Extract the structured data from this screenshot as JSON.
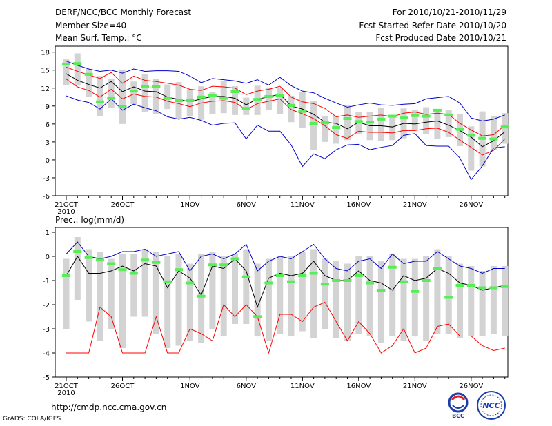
{
  "header": {
    "title": "DERF/NCC/BCC Monthly Forecast",
    "member_size": "Member Size=40",
    "variable": "Mean Surf. Temp.: °C",
    "period": "For 2010/10/21-2010/11/29",
    "refer_date": "Fcst Started Refer Date 2010/10/20",
    "produced_date": "Fcst Produced Date 2010/10/21"
  },
  "footer": {
    "url": "http://cmdp.ncc.cma.gov.cn",
    "credit": "GrADS: COLA/IGES",
    "logo_left_text": "BCC",
    "logo_right_text": "NCC"
  },
  "colors": {
    "mean": "#000000",
    "spread": "#ff0000",
    "range": "#0000cc",
    "box": "#d3d3d3",
    "obs": "#55ee55"
  },
  "chart_data": [
    {
      "type": "line",
      "title": "Mean Surf. Temp.: °C",
      "ylim": [
        -6,
        19
      ],
      "yticks": [
        "18",
        "15",
        "12",
        "9",
        "6",
        "3",
        "0",
        "-3",
        "-6"
      ],
      "ytick_values": [
        18,
        15,
        12,
        9,
        6,
        3,
        0,
        -3,
        -6
      ],
      "xlabels": [
        "21OCT",
        "26OCT",
        "1NOV",
        "6NOV",
        "11NOV",
        "16NOV",
        "21NOV",
        "26NOV"
      ],
      "xlabel_days": [
        0,
        5,
        11,
        16,
        21,
        26,
        31,
        36
      ],
      "x_year": "2010",
      "series": [
        {
          "name": "ensemble max",
          "values": [
            16.5,
            15.8,
            15.2,
            14.8,
            15.0,
            14.5,
            15.2,
            14.8,
            14.9,
            14.9,
            14.8,
            14.0,
            12.9,
            13.6,
            13.4,
            13.2,
            12.8,
            13.4,
            12.5,
            13.8,
            12.4,
            11.5,
            11.2,
            10.3,
            9.5,
            8.8,
            9.2,
            9.5,
            9.2,
            9.1,
            9.3,
            9.4,
            10.2,
            10.4,
            10.6,
            9.5,
            7.0,
            6.5,
            6.8,
            7.5
          ]
        },
        {
          "name": "upper spread",
          "values": [
            15.5,
            14.8,
            14.2,
            13.6,
            14.6,
            12.8,
            14.0,
            13.3,
            13.1,
            12.8,
            12.5,
            11.8,
            11.6,
            12.3,
            12.2,
            12.0,
            10.9,
            11.5,
            11.8,
            12.3,
            10.5,
            9.7,
            9.4,
            8.6,
            7.2,
            7.5,
            7.1,
            7.3,
            7.5,
            7.2,
            7.8,
            8.0,
            7.6,
            7.8,
            7.6,
            6.1,
            5.0,
            4.0,
            4.2,
            5.8
          ]
        },
        {
          "name": "ensemble mean",
          "values": [
            14.4,
            13.3,
            12.6,
            12.0,
            13.1,
            11.4,
            12.2,
            11.5,
            11.4,
            10.5,
            10.1,
            9.7,
            10.2,
            10.6,
            10.6,
            10.3,
            9.2,
            10.2,
            10.5,
            11.0,
            9.0,
            8.5,
            7.6,
            6.3,
            6.1,
            5.2,
            6.3,
            5.7,
            5.7,
            5.5,
            6.1,
            6.0,
            6.3,
            6.5,
            5.8,
            4.9,
            3.8,
            2.2,
            3.2,
            4.7
          ]
        },
        {
          "name": "lower spread",
          "values": [
            13.5,
            12.2,
            11.6,
            10.5,
            11.8,
            10.2,
            11.0,
            10.6,
            10.5,
            9.8,
            9.4,
            8.9,
            9.5,
            9.8,
            9.9,
            9.6,
            8.4,
            9.4,
            9.8,
            10.2,
            8.4,
            7.7,
            6.9,
            5.7,
            4.2,
            3.6,
            4.8,
            4.6,
            4.6,
            4.5,
            4.9,
            4.9,
            5.2,
            5.3,
            4.6,
            3.3,
            2.1,
            0.8,
            1.6,
            3.5
          ]
        },
        {
          "name": "ensemble min",
          "values": [
            10.7,
            10.0,
            9.6,
            8.5,
            10.2,
            8.3,
            9.3,
            8.7,
            8.2,
            7.2,
            6.8,
            7.1,
            6.6,
            5.8,
            6.1,
            6.2,
            3.5,
            5.8,
            4.8,
            4.8,
            2.5,
            -1.1,
            1.0,
            0.2,
            1.7,
            2.5,
            2.6,
            1.7,
            2.1,
            2.4,
            4.1,
            4.4,
            2.4,
            2.3,
            2.3,
            0.3,
            -3.3,
            -1.0,
            2.0,
            2.2
          ]
        },
        {
          "name": "observed",
          "values": [
            16.0,
            16.1,
            14.3,
            9.7,
            10.3,
            8.9,
            11.5,
            12.3,
            12.2,
            10.3,
            9.9,
            9.9,
            10.5,
            10.8,
            10.3,
            11.4,
            8.6,
            10.1,
            10.6,
            10.8,
            9.1,
            8.1,
            6.1,
            6.2,
            5.4,
            6.9,
            6.4,
            6.3,
            6.8,
            7.3,
            7.0,
            7.4,
            7.3,
            8.3,
            7.5,
            5.1,
            4.1,
            3.6,
            3.5,
            5.5
          ]
        }
      ],
      "boxes": {
        "upper": [
          16.8,
          17.8,
          15.2,
          14.0,
          13.6,
          15.1,
          13.1,
          14.3,
          13.5,
          12.6,
          13.0,
          11.8,
          12.3,
          11.4,
          13.2,
          12.3,
          10.4,
          12.4,
          12.0,
          12.0,
          10.7,
          11.3,
          9.9,
          7.3,
          7.4,
          9.2,
          8.0,
          8.0,
          8.7,
          7.5,
          8.6,
          8.4,
          8.8,
          8.5,
          8.3,
          7.6,
          5.6,
          8.1,
          7.3,
          7.8
        ],
        "lower": [
          12.5,
          12.4,
          10.5,
          7.3,
          8.7,
          6.0,
          9.3,
          8.0,
          7.6,
          8.5,
          6.9,
          7.3,
          6.7,
          7.7,
          7.8,
          7.5,
          7.5,
          7.5,
          8.4,
          7.6,
          6.3,
          5.4,
          1.6,
          3.0,
          2.7,
          3.3,
          4.3,
          3.3,
          3.2,
          3.3,
          3.6,
          5.0,
          4.3,
          3.5,
          3.8,
          2.3,
          -1.8,
          -1.1,
          1.7,
          2.7
        ]
      }
    },
    {
      "type": "line",
      "title": "Prec.: log(mm/d)",
      "ylim": [
        -5,
        1.2
      ],
      "yticks": [
        "1",
        "0",
        "-1",
        "-2",
        "-3",
        "-4",
        "-5"
      ],
      "ytick_values": [
        1,
        0,
        -1,
        -2,
        -3,
        -4,
        -5
      ],
      "xlabels": [
        "21OCT",
        "26OCT",
        "1NOV",
        "6NOV",
        "11NOV",
        "16NOV",
        "21NOV",
        "26NOV"
      ],
      "xlabel_days": [
        0,
        5,
        11,
        16,
        21,
        26,
        31,
        36
      ],
      "x_year": "2010",
      "series": [
        {
          "name": "ensemble max",
          "values": [
            0.1,
            0.6,
            0.0,
            -0.1,
            0.0,
            0.2,
            0.2,
            0.3,
            0.0,
            0.1,
            0.2,
            -0.6,
            0.0,
            0.1,
            -0.1,
            0.1,
            0.5,
            -0.6,
            -0.2,
            0.0,
            -0.1,
            0.2,
            0.5,
            -0.1,
            -0.5,
            -0.6,
            -0.2,
            -0.1,
            -0.5,
            0.1,
            -0.3,
            -0.2,
            -0.2,
            0.2,
            -0.1,
            -0.4,
            -0.5,
            -0.7,
            -0.5,
            -0.5
          ]
        },
        {
          "name": "ensemble mean",
          "values": [
            -0.8,
            0.0,
            -0.7,
            -0.7,
            -0.6,
            -0.4,
            -0.6,
            -0.3,
            -0.4,
            -1.3,
            -0.6,
            -0.9,
            -1.6,
            -0.4,
            -0.5,
            -0.1,
            -0.6,
            -2.1,
            -0.9,
            -0.7,
            -0.8,
            -0.7,
            -0.2,
            -0.8,
            -1.0,
            -1.0,
            -0.6,
            -1.0,
            -1.1,
            -1.4,
            -0.8,
            -1.0,
            -0.9,
            -0.5,
            -0.7,
            -1.1,
            -1.2,
            -1.4,
            -1.3,
            -1.2
          ]
        },
        {
          "name": "ensemble min",
          "values": [
            -4.0,
            -4.0,
            -4.0,
            -2.1,
            -2.5,
            -4.0,
            -4.0,
            -4.0,
            -2.5,
            -4.0,
            -4.0,
            -3.0,
            -3.2,
            -3.5,
            -2.0,
            -2.5,
            -2.0,
            -2.5,
            -4.0,
            -2.4,
            -2.4,
            -2.7,
            -2.1,
            -1.9,
            -2.7,
            -3.5,
            -2.7,
            -3.2,
            -4.0,
            -3.7,
            -3.0,
            -4.0,
            -3.8,
            -2.9,
            -2.8,
            -3.3,
            -3.3,
            -3.7,
            -3.9,
            -3.8
          ]
        },
        {
          "name": "observed",
          "values": [
            -0.8,
            0.2,
            -0.05,
            -0.15,
            -0.3,
            -0.55,
            -0.7,
            -0.15,
            -0.25,
            -1.05,
            -0.55,
            -1.1,
            -1.65,
            -0.35,
            -0.35,
            -0.1,
            -0.85,
            -2.5,
            -1.1,
            -0.8,
            -1.05,
            -0.8,
            -0.7,
            -1.15,
            -1.0,
            -1.0,
            -0.8,
            -1.1,
            -1.4,
            -0.45,
            -1.05,
            -1.45,
            -1.0,
            -0.5,
            -1.7,
            -1.2,
            -1.2,
            -1.3,
            -1.3,
            -1.25
          ]
        }
      ],
      "boxes": {
        "upper": [
          -0.1,
          0.8,
          0.3,
          0.2,
          -0.1,
          0.1,
          0.1,
          0.3,
          0.2,
          0.0,
          0.1,
          -0.3,
          0.1,
          0.2,
          0.0,
          0.1,
          0.3,
          -0.3,
          -0.1,
          0.0,
          0.0,
          0.2,
          0.3,
          -0.1,
          -0.2,
          -0.3,
          0.0,
          0.0,
          -0.2,
          0.1,
          -0.1,
          -0.1,
          0.0,
          0.3,
          0.0,
          -0.3,
          -0.4,
          -0.6,
          -0.4,
          -0.4
        ],
        "lower": [
          -3.0,
          -1.8,
          -2.7,
          -3.5,
          -3.0,
          -3.8,
          -2.5,
          -2.5,
          -3.2,
          -3.8,
          -3.7,
          -3.5,
          -3.6,
          -3.0,
          -3.3,
          -2.8,
          -2.8,
          -3.3,
          -3.5,
          -3.2,
          -3.3,
          -3.1,
          -3.4,
          -3.0,
          -3.4,
          -3.5,
          -3.2,
          -3.3,
          -3.6,
          -3.3,
          -3.5,
          -3.3,
          -3.5,
          -3.2,
          -3.2,
          -3.4,
          -3.3,
          -3.3,
          -3.2,
          -3.3
        ]
      }
    }
  ]
}
